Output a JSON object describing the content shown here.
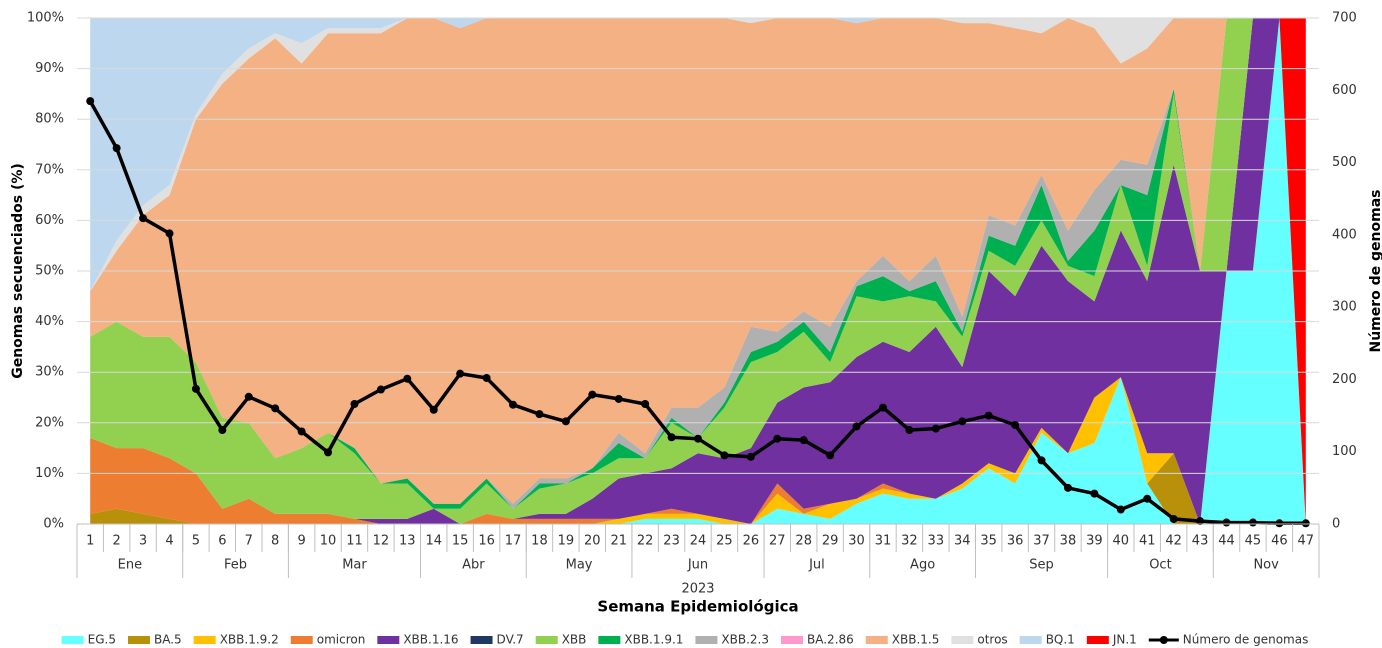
{
  "chart_data": {
    "type": "area",
    "ylabel": "Genomas secuenciados (%)",
    "y2label": "Número de genomas",
    "xlabel": "Semana Epidemiológica",
    "year": "2023",
    "categories": [
      1,
      2,
      3,
      4,
      5,
      6,
      7,
      8,
      9,
      10,
      11,
      12,
      13,
      14,
      15,
      16,
      17,
      18,
      19,
      20,
      21,
      22,
      23,
      24,
      25,
      26,
      27,
      28,
      29,
      30,
      31,
      32,
      33,
      34,
      35,
      36,
      37,
      38,
      39,
      40,
      41,
      42,
      43,
      44,
      45,
      46,
      47
    ],
    "month": [
      "Ene",
      "Ene",
      "Ene",
      "Ene",
      "Feb",
      "Feb",
      "Feb",
      "Feb",
      "Mar",
      "Mar",
      "Mar",
      "Mar",
      "Mar",
      "Abr",
      "Abr",
      "Abr",
      "Abr",
      "May",
      "May",
      "May",
      "May",
      "Jun",
      "Jun",
      "Jun",
      "Jun",
      "Jun",
      "Jul",
      "Jul",
      "Jul",
      "Jul",
      "Ago",
      "Ago",
      "Ago",
      "Ago",
      "Sep",
      "Sep",
      "Sep",
      "Sep",
      "Sep",
      "Oct",
      "Oct",
      "Oct",
      "Oct",
      "Nov",
      "Nov",
      "Nov",
      "Nov"
    ],
    "ylim": [
      0,
      100
    ],
    "yticks": [
      {
        "value": 0,
        "label": "0%"
      },
      {
        "value": 10,
        "label": "10%"
      },
      {
        "value": 20,
        "label": "20%"
      },
      {
        "value": 30,
        "label": "30%"
      },
      {
        "value": 40,
        "label": "40%"
      },
      {
        "value": 50,
        "label": "50%"
      },
      {
        "value": 60,
        "label": "60%"
      },
      {
        "value": 70,
        "label": "70%"
      },
      {
        "value": 80,
        "label": "80%"
      },
      {
        "value": 90,
        "label": "90%"
      },
      {
        "value": 100,
        "label": "100%"
      }
    ],
    "y2lim": [
      0,
      700
    ],
    "y2ticks": [
      0,
      100,
      200,
      300,
      400,
      500,
      600,
      700
    ],
    "grid": true,
    "series": [
      {
        "name": "EG.5",
        "color": "#66ffff",
        "values": [
          0,
          0,
          0,
          0,
          0,
          0,
          0,
          0,
          0,
          0,
          0,
          0,
          0,
          0,
          0,
          0,
          0,
          0,
          0,
          0,
          0,
          1,
          1,
          1,
          0,
          0,
          3,
          2,
          1,
          4,
          6,
          5,
          5,
          7,
          11,
          8,
          18,
          14,
          16,
          29,
          8,
          0,
          0,
          50,
          50,
          100,
          0
        ]
      },
      {
        "name": "BA.5",
        "color": "#b8900a",
        "values": [
          2,
          3,
          2,
          1,
          0,
          0,
          0,
          0,
          0,
          0,
          0,
          0,
          0,
          0,
          0,
          0,
          0,
          0,
          0,
          0,
          0,
          0,
          0,
          0,
          0,
          0,
          0,
          0,
          0,
          0,
          0,
          0,
          0,
          0,
          0,
          0,
          0,
          0,
          0,
          0,
          0,
          14,
          0,
          0,
          0,
          0,
          0
        ]
      },
      {
        "name": "XBB.1.9.2",
        "color": "#ffc000",
        "values": [
          0,
          0,
          0,
          0,
          0,
          0,
          0,
          0,
          0,
          0,
          0,
          0,
          0,
          0,
          0,
          0,
          0,
          0,
          0,
          0,
          1,
          1,
          1,
          1,
          1,
          0,
          3,
          0,
          3,
          1,
          1,
          1,
          0,
          1,
          1,
          2,
          1,
          0,
          9,
          0,
          6,
          0,
          0,
          0,
          0,
          0,
          0
        ]
      },
      {
        "name": "omicron",
        "color": "#ed7d31",
        "values": [
          15,
          12,
          13,
          12,
          10,
          3,
          5,
          2,
          2,
          2,
          1,
          0,
          0,
          0,
          0,
          2,
          1,
          1,
          1,
          1,
          0,
          0,
          1,
          0,
          0,
          0,
          2,
          1,
          0,
          0,
          1,
          0,
          0,
          0,
          0,
          0,
          0,
          0,
          0,
          0,
          0,
          0,
          0,
          0,
          0,
          0,
          0
        ]
      },
      {
        "name": "XBB.1.16",
        "color": "#7030a0",
        "values": [
          0,
          0,
          0,
          0,
          0,
          0,
          0,
          0,
          0,
          0,
          0,
          1,
          1,
          3,
          0,
          0,
          0,
          1,
          1,
          4,
          8,
          8,
          8,
          12,
          12,
          15,
          16,
          24,
          24,
          28,
          28,
          28,
          34,
          23,
          38,
          35,
          36,
          34,
          19,
          29,
          34,
          57,
          50,
          0,
          50,
          0,
          0
        ]
      },
      {
        "name": "DV.7",
        "color": "#1f3864",
        "values": [
          0,
          0,
          0,
          0,
          0,
          0,
          0,
          0,
          0,
          0,
          0,
          0,
          0,
          0,
          0,
          0,
          0,
          0,
          0,
          0,
          0,
          0,
          0,
          0,
          0,
          0,
          0,
          0,
          0,
          0,
          0,
          0,
          0,
          0,
          0,
          0,
          0,
          0,
          0,
          0,
          0,
          0,
          0,
          0,
          0,
          0,
          0
        ]
      },
      {
        "name": "XBB",
        "color": "#92d050",
        "values": [
          20,
          25,
          22,
          24,
          22,
          18,
          15,
          11,
          13,
          16,
          13,
          7,
          7,
          0,
          3,
          6,
          2,
          5,
          6,
          5,
          4,
          3,
          9,
          3,
          10,
          17,
          10,
          11,
          4,
          12,
          8,
          11,
          5,
          6,
          4,
          6,
          5,
          3,
          5,
          9,
          3,
          14,
          0,
          50,
          0,
          0,
          0
        ]
      },
      {
        "name": "XBB.1.9.1",
        "color": "#00b050",
        "values": [
          0,
          0,
          0,
          0,
          0,
          0,
          0,
          0,
          0,
          0,
          1,
          0,
          1,
          1,
          1,
          1,
          0,
          1,
          0,
          1,
          3,
          0,
          1,
          0,
          1,
          2,
          2,
          2,
          2,
          2,
          5,
          1,
          4,
          1,
          3,
          4,
          7,
          1,
          9,
          0,
          14,
          1,
          0,
          0,
          0,
          0,
          0
        ]
      },
      {
        "name": "XBB.2.3",
        "color": "#b0b0b0",
        "values": [
          0,
          0,
          0,
          0,
          0,
          0,
          0,
          0,
          0,
          0,
          0,
          0,
          0,
          0,
          0,
          0,
          1,
          1,
          1,
          0,
          2,
          1,
          2,
          6,
          3,
          5,
          2,
          2,
          5,
          1,
          4,
          2,
          5,
          3,
          4,
          4,
          2,
          6,
          8,
          5,
          6,
          0,
          0,
          0,
          0,
          0,
          0
        ]
      },
      {
        "name": "BA.2.86",
        "color": "#ff99cc",
        "values": [
          0,
          0,
          0,
          0,
          0,
          0,
          0,
          0,
          0,
          0,
          0,
          0,
          0,
          0,
          0,
          0,
          0,
          0,
          0,
          0,
          0,
          0,
          0,
          0,
          0,
          0,
          0,
          0,
          0,
          0,
          0,
          0,
          0,
          0,
          0,
          0,
          0,
          0,
          0,
          0,
          0,
          0,
          0,
          0,
          0,
          0,
          0
        ]
      },
      {
        "name": "XBB.1.5",
        "color": "#f4b183",
        "values": [
          9,
          14,
          24,
          28,
          48,
          66,
          72,
          83,
          76,
          79,
          82,
          89,
          91,
          96,
          94,
          91,
          96,
          91,
          91,
          89,
          82,
          86,
          77,
          77,
          73,
          60,
          62,
          58,
          61,
          51,
          47,
          52,
          47,
          58,
          38,
          39,
          28,
          42,
          32,
          19,
          23,
          14,
          50,
          0,
          0,
          0,
          0
        ]
      },
      {
        "name": "otros",
        "color": "#e0e0e0",
        "values": [
          0,
          2,
          2,
          2,
          1,
          2,
          2,
          1,
          4,
          1,
          1,
          1,
          0,
          0,
          0,
          0,
          0,
          0,
          0,
          0,
          0,
          0,
          0,
          0,
          0,
          1,
          0,
          0,
          0,
          0,
          0,
          0,
          0,
          1,
          1,
          2,
          3,
          0,
          2,
          9,
          6,
          0,
          0,
          0,
          0,
          0,
          0
        ]
      },
      {
        "name": "BQ.1",
        "color": "#bdd7ee",
        "values": [
          54,
          44,
          37,
          33,
          19,
          11,
          6,
          3,
          5,
          2,
          2,
          2,
          0,
          0,
          2,
          0,
          0,
          0,
          0,
          0,
          0,
          0,
          0,
          0,
          0,
          0,
          0,
          0,
          0,
          1,
          0,
          0,
          0,
          0,
          0,
          0,
          0,
          0,
          0,
          0,
          0,
          0,
          0,
          0,
          0,
          0,
          0
        ]
      },
      {
        "name": "JN.1",
        "color": "#ff0000",
        "values": [
          0,
          0,
          0,
          0,
          0,
          0,
          0,
          0,
          0,
          0,
          0,
          0,
          0,
          0,
          0,
          0,
          0,
          0,
          0,
          0,
          0,
          0,
          0,
          0,
          0,
          0,
          0,
          0,
          0,
          0,
          0,
          0,
          0,
          0,
          0,
          0,
          0,
          0,
          0,
          0,
          0,
          0,
          0,
          0,
          0,
          0,
          100
        ]
      },
      {
        "name": "Número de genomas",
        "type": "line",
        "axis": "y2",
        "color": "#000000",
        "values": [
          585,
          520,
          423,
          402,
          187,
          130,
          176,
          160,
          128,
          99,
          166,
          186,
          201,
          158,
          208,
          202,
          165,
          152,
          142,
          179,
          173,
          166,
          120,
          118,
          95,
          93,
          118,
          116,
          95,
          135,
          161,
          130,
          132,
          142,
          150,
          137,
          88,
          50,
          42,
          20,
          35,
          7,
          4,
          2,
          2,
          1,
          1
        ]
      }
    ]
  }
}
